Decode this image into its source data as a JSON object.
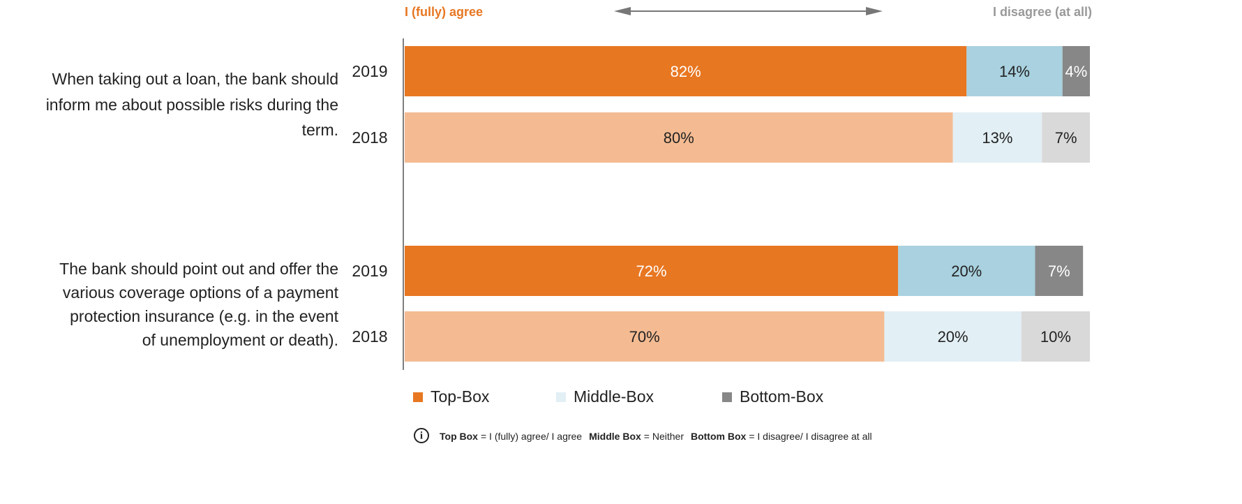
{
  "chart_data": {
    "type": "stacked-bar-horizontal",
    "header_left": "I (fully) agree",
    "header_right": "I disagree (at all)",
    "groups": [
      {
        "lines": [
          "When taking out a loan, the bank should",
          "inform me about possible risks during the",
          "term."
        ]
      },
      {
        "lines": [
          "The bank should point out and offer the",
          "various coverage options of a payment",
          "protection insurance (e.g. in the event",
          "of unemployment or death)."
        ]
      }
    ],
    "categories": [
      "2019",
      "2018",
      "2019",
      "2018"
    ],
    "series": [
      {
        "name": "Top-Box",
        "color": "#e87722",
        "colors": [
          "#e87722",
          "#f4bb92",
          "#e87722",
          "#f4bb92"
        ],
        "values": [
          82,
          80,
          72,
          70
        ],
        "value_labels": [
          "82%",
          "80%",
          "72%",
          "70%"
        ]
      },
      {
        "name": "Middle-Box",
        "color": "#e2eff4",
        "colors": [
          "#a9d1df",
          "#e2eff4",
          "#a9d1df",
          "#e2eff4"
        ],
        "values": [
          14,
          13,
          20,
          20
        ],
        "value_labels": [
          "14%",
          "13%",
          "20%",
          "20%"
        ]
      },
      {
        "name": "Bottom-Box",
        "color": "#878787",
        "colors": [
          "#878787",
          "#d9d9d9",
          "#878787",
          "#d9d9d9"
        ],
        "values": [
          4,
          7,
          7,
          10
        ],
        "value_labels": [
          "4%",
          "7%",
          "7%",
          "10%"
        ]
      }
    ],
    "footnote": [
      {
        "term": "Top Box",
        "definition": "= I (fully) agree/ I agree"
      },
      {
        "term": "Middle Box",
        "definition": "= Neither"
      },
      {
        "term": "Bottom Box",
        "definition": "= I disagree/ I disagree at all"
      }
    ]
  }
}
